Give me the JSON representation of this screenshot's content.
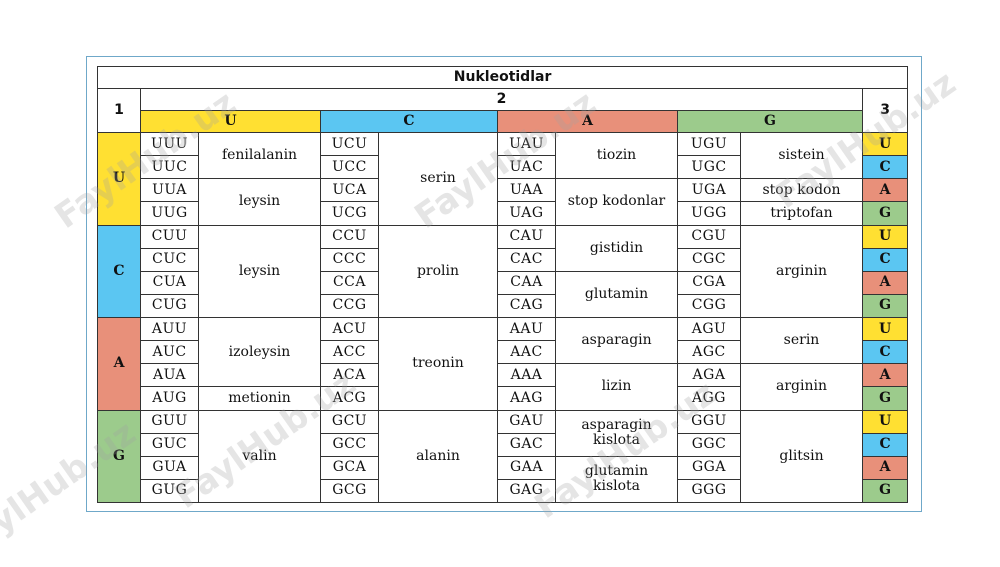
{
  "table": {
    "title": "Nukleotidlar",
    "label_first": "1",
    "label_second": "2",
    "label_third": "3"
  },
  "colors": {
    "U": "#ffe032",
    "C": "#5bc6f2",
    "A": "#e8907a",
    "G": "#9ccb8c"
  },
  "headers": [
    "U",
    "C",
    "A",
    "G"
  ],
  "thirds": [
    "U",
    "C",
    "A",
    "G"
  ],
  "rows": [
    {
      "first": "U",
      "codons": [
        "UUU",
        "UCU",
        "UAU",
        "UGU"
      ]
    },
    {
      "first": "U",
      "codons": [
        "UUC",
        "UCC",
        "UAC",
        "UGC"
      ]
    },
    {
      "first": "U",
      "codons": [
        "UUA",
        "UCA",
        "UAA",
        "UGA"
      ]
    },
    {
      "first": "U",
      "codons": [
        "UUG",
        "UCG",
        "UAG",
        "UGG"
      ]
    },
    {
      "first": "C",
      "codons": [
        "CUU",
        "CCU",
        "CAU",
        "CGU"
      ]
    },
    {
      "first": "C",
      "codons": [
        "CUC",
        "CCC",
        "CAC",
        "CGC"
      ]
    },
    {
      "first": "C",
      "codons": [
        "CUA",
        "CCA",
        "CAA",
        "CGA"
      ]
    },
    {
      "first": "C",
      "codons": [
        "CUG",
        "CCG",
        "CAG",
        "CGG"
      ]
    },
    {
      "first": "A",
      "codons": [
        "AUU",
        "ACU",
        "AAU",
        "AGU"
      ]
    },
    {
      "first": "A",
      "codons": [
        "AUC",
        "ACC",
        "AAC",
        "AGC"
      ]
    },
    {
      "first": "A",
      "codons": [
        "AUA",
        "ACA",
        "AAA",
        "AGA"
      ]
    },
    {
      "first": "A",
      "codons": [
        "AUG",
        "ACG",
        "AAG",
        "AGG"
      ]
    },
    {
      "first": "G",
      "codons": [
        "GUU",
        "GCU",
        "GAU",
        "GGU"
      ]
    },
    {
      "first": "G",
      "codons": [
        "GUC",
        "GCC",
        "GAC",
        "GGC"
      ]
    },
    {
      "first": "G",
      "codons": [
        "GUA",
        "GCA",
        "GAA",
        "GGA"
      ]
    },
    {
      "first": "G",
      "codons": [
        "GUG",
        "GCG",
        "GAG",
        "GGG"
      ]
    }
  ],
  "amino": [
    [
      {
        "start": 0,
        "span": 2,
        "text": "fenilalanin"
      },
      {
        "start": 2,
        "span": 2,
        "text": "leysin"
      },
      {
        "start": 4,
        "span": 4,
        "text": "leysin"
      },
      {
        "start": 8,
        "span": 3,
        "text": "izoleysin"
      },
      {
        "start": 11,
        "span": 1,
        "text": "metionin"
      },
      {
        "start": 12,
        "span": 4,
        "text": "valin"
      }
    ],
    [
      {
        "start": 0,
        "span": 4,
        "text": "serin"
      },
      {
        "start": 4,
        "span": 4,
        "text": "prolin"
      },
      {
        "start": 8,
        "span": 4,
        "text": "treonin"
      },
      {
        "start": 12,
        "span": 4,
        "text": "alanin"
      }
    ],
    [
      {
        "start": 0,
        "span": 2,
        "text": "tiozin"
      },
      {
        "start": 2,
        "span": 2,
        "text": "stop kodonlar"
      },
      {
        "start": 4,
        "span": 2,
        "text": "gistidin"
      },
      {
        "start": 6,
        "span": 2,
        "text": "glutamin"
      },
      {
        "start": 8,
        "span": 2,
        "text": "asparagin"
      },
      {
        "start": 10,
        "span": 2,
        "text": "lizin"
      },
      {
        "start": 12,
        "span": 2,
        "text": "asparagin kislota"
      },
      {
        "start": 14,
        "span": 2,
        "text": "glutamin kislota"
      }
    ],
    [
      {
        "start": 0,
        "span": 2,
        "text": "sistein"
      },
      {
        "start": 2,
        "span": 1,
        "text": "stop kodon"
      },
      {
        "start": 3,
        "span": 1,
        "text": "triptofan"
      },
      {
        "start": 4,
        "span": 4,
        "text": "arginin"
      },
      {
        "start": 8,
        "span": 2,
        "text": "serin"
      },
      {
        "start": 10,
        "span": 2,
        "text": "arginin"
      },
      {
        "start": 12,
        "span": 4,
        "text": "glitsin"
      }
    ]
  ],
  "watermark": "FaylHub.uz"
}
